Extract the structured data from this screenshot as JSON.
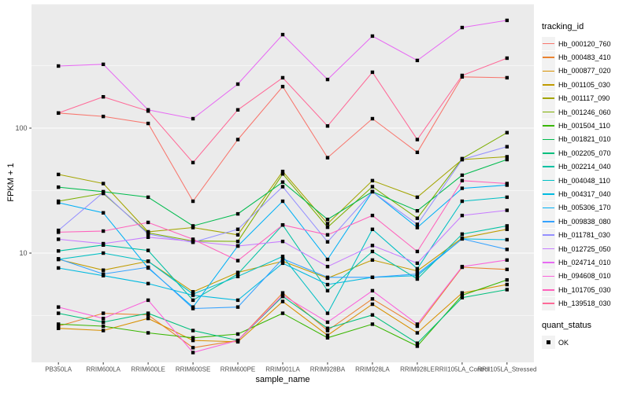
{
  "panel": {
    "background": "#EBEBEB",
    "gridline": "#FFFFFF",
    "tick_color": "#333333",
    "tick_label_color": "#4D4D4D"
  },
  "legend": {
    "title": "tracking_id"
  },
  "quant_status": {
    "title": "quant_status",
    "items": [
      {
        "label": "OK",
        "marker": "black-square"
      }
    ]
  },
  "chart_data": {
    "type": "line",
    "title": "",
    "xlabel": "sample_name",
    "ylabel": "FPKM + 1",
    "y_scale": "log10",
    "ylim": [
      1.35,
      980
    ],
    "grid": "on",
    "legend_position": "right",
    "marker": {
      "shape": "square",
      "color": "#000000"
    },
    "y_axis": {
      "major_ticks": [
        {
          "label": "100",
          "value": 100
        },
        {
          "label": "10",
          "value": 10
        }
      ],
      "minor_breaks": [
        316.23,
        31.623,
        3.1623
      ]
    },
    "categories": [
      "PB350LA",
      "RRIM600LA",
      "RRIM600LE",
      "RRIM600SE",
      "RRIM600PE",
      "RRIM901LA",
      "RRIM928BA",
      "RRIM928LA",
      "RRIM928LE",
      "RRII105LA_Control",
      "RRII105LA_Stressed"
    ],
    "series": [
      {
        "name": "Hb_000120_760",
        "color": "#F8766D",
        "values": [
          132,
          124,
          109,
          26,
          81,
          215,
          58,
          119,
          64,
          257,
          253
        ]
      },
      {
        "name": "Hb_000483_410",
        "color": "#EA8331",
        "values": [
          2.6,
          3.3,
          3.2,
          1.75,
          2.0,
          4.8,
          2.4,
          4.3,
          2.6,
          7.7,
          7.4
        ]
      },
      {
        "name": "Hb_000877_020",
        "color": "#D89000",
        "values": [
          2.5,
          2.4,
          3.0,
          2.0,
          1.95,
          4.1,
          2.2,
          3.9,
          2.3,
          4.8,
          5.6
        ]
      },
      {
        "name": "Hb_001105_030",
        "color": "#C09B00",
        "values": [
          8.9,
          7.3,
          8.6,
          4.9,
          7.0,
          8.6,
          6.3,
          8.8,
          7.2,
          13.2,
          15.5
        ]
      },
      {
        "name": "Hb_001117_090",
        "color": "#A3A500",
        "values": [
          42.6,
          36,
          14.8,
          16.0,
          14.0,
          45,
          17.2,
          38,
          28,
          56,
          59
        ]
      },
      {
        "name": "Hb_001246_060",
        "color": "#7CAE00",
        "values": [
          26,
          30,
          14.5,
          12.5,
          12.4,
          43,
          16.1,
          34,
          19,
          57,
          92
        ]
      },
      {
        "name": "Hb_001504_110",
        "color": "#39B600",
        "values": [
          2.7,
          2.6,
          2.3,
          2.1,
          2.25,
          3.3,
          2.1,
          2.7,
          1.8,
          4.6,
          6.1
        ]
      },
      {
        "name": "Hb_001821_010",
        "color": "#00BB4E",
        "values": [
          33.7,
          31,
          28,
          16.5,
          20.6,
          37,
          18.6,
          31,
          21.8,
          42,
          56
        ]
      },
      {
        "name": "Hb_002205_070",
        "color": "#00BF7D",
        "values": [
          3.3,
          2.8,
          3.3,
          2.4,
          2.0,
          4.5,
          2.5,
          3.2,
          1.9,
          4.4,
          5.1
        ]
      },
      {
        "name": "Hb_002214_040",
        "color": "#00C1A3",
        "values": [
          10.4,
          11.6,
          10.5,
          4.2,
          6.8,
          16.8,
          5.0,
          10.3,
          6.2,
          14.2,
          16.5
        ]
      },
      {
        "name": "Hb_004048_110",
        "color": "#00BFC4",
        "values": [
          8.9,
          10.0,
          8.6,
          4.7,
          6.5,
          9.4,
          3.3,
          15.5,
          7.5,
          26,
          28
        ]
      },
      {
        "name": "Hb_004317_040",
        "color": "#00BAE0",
        "values": [
          7.6,
          6.6,
          5.7,
          4.6,
          4.2,
          8.3,
          5.6,
          6.4,
          6.6,
          13.0,
          12.8
        ]
      },
      {
        "name": "Hb_005306_170",
        "color": "#00B0F6",
        "values": [
          25.3,
          21,
          7.6,
          3.7,
          11.4,
          26,
          8.9,
          31,
          16,
          33,
          35
        ]
      },
      {
        "name": "Hb_009838_080",
        "color": "#35A2FF",
        "values": [
          9.0,
          6.8,
          7.7,
          3.6,
          3.7,
          9.0,
          6.4,
          6.4,
          6.8,
          13.0,
          10.7
        ]
      },
      {
        "name": "Hb_011781_030",
        "color": "#9590FF",
        "values": [
          15.2,
          30.5,
          14.2,
          12.2,
          15.5,
          34,
          12.3,
          31,
          17.0,
          56,
          71
        ]
      },
      {
        "name": "Hb_012725_050",
        "color": "#C77CFF",
        "values": [
          12.9,
          11.9,
          13.4,
          12.4,
          11.4,
          12.4,
          7.8,
          11.5,
          8.3,
          20,
          22
        ]
      },
      {
        "name": "Hb_024714_010",
        "color": "#E76BF3",
        "values": [
          314,
          324,
          140,
          119,
          225,
          560,
          245,
          545,
          348,
          638,
          728
        ]
      },
      {
        "name": "Hb_094608_010",
        "color": "#FA62DB",
        "values": [
          3.7,
          3.0,
          4.2,
          1.6,
          2.0,
          4.6,
          2.8,
          5.0,
          2.7,
          7.8,
          8.8
        ]
      },
      {
        "name": "Hb_101705_030",
        "color": "#FF62BC",
        "values": [
          14.7,
          15.0,
          17.6,
          12.9,
          8.7,
          16.8,
          14.0,
          20.0,
          10.3,
          38,
          36
        ]
      },
      {
        "name": "Hb_139518_030",
        "color": "#FF6A98",
        "values": [
          132,
          178,
          137,
          53,
          140,
          253,
          104,
          280,
          81,
          264,
          363
        ]
      }
    ]
  }
}
